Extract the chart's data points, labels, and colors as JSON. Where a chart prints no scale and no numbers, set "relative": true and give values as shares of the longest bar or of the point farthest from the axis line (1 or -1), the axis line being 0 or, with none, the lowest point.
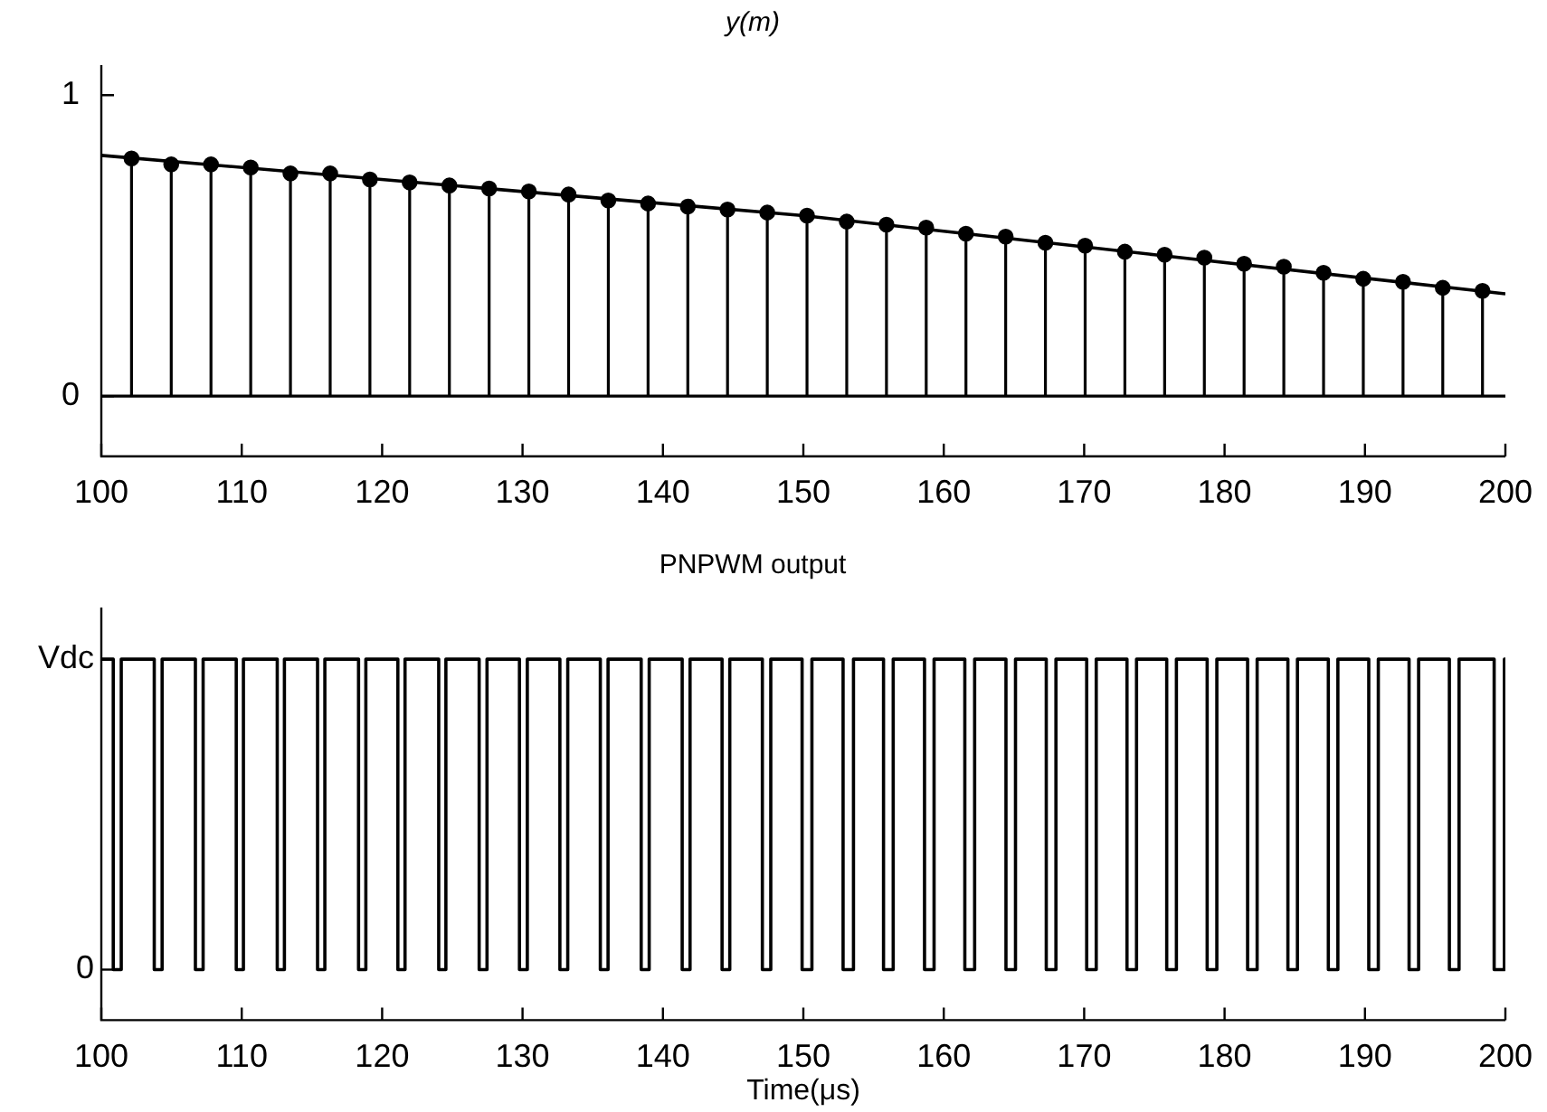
{
  "chart_data": [
    {
      "type": "lollipop",
      "title": "y(m)",
      "xlim": [
        100,
        200
      ],
      "xticks": [
        100,
        110,
        120,
        130,
        140,
        150,
        160,
        170,
        180,
        190,
        200
      ],
      "ylim": [
        -0.2,
        1.1
      ],
      "yticks": [
        0,
        1
      ],
      "marker": "circle",
      "legend": false,
      "series": [
        {
          "type": "lollipop",
          "color": "#000000",
          "x": [
            102.15,
            104.98,
            107.81,
            110.64,
            113.47,
            116.3,
            119.13,
            121.96,
            124.79,
            127.62,
            130.45,
            133.28,
            136.11,
            138.94,
            141.77,
            144.6,
            147.43,
            150.26,
            153.09,
            155.92,
            158.75,
            161.58,
            164.41,
            167.24,
            170.07,
            172.9,
            175.73,
            178.56,
            181.39,
            184.22,
            187.05,
            189.88,
            192.71,
            195.54,
            198.37
          ],
          "values": [
            0.79,
            0.77,
            0.77,
            0.76,
            0.74,
            0.74,
            0.72,
            0.71,
            0.7,
            0.69,
            0.68,
            0.67,
            0.65,
            0.64,
            0.63,
            0.62,
            0.61,
            0.6,
            0.58,
            0.57,
            0.56,
            0.54,
            0.53,
            0.51,
            0.5,
            0.48,
            0.47,
            0.46,
            0.44,
            0.43,
            0.41,
            0.39,
            0.38,
            0.36,
            0.35
          ]
        },
        {
          "type": "line",
          "color": "#000000",
          "marker": "none",
          "x": [
            100,
            125,
            150,
            175,
            200
          ],
          "values": [
            0.8,
            0.7,
            0.6,
            0.47,
            0.34
          ]
        }
      ]
    },
    {
      "type": "step",
      "title": "PNPWM output",
      "xlabel": "Time(μs)",
      "xlim": [
        100,
        200
      ],
      "xticks": [
        100,
        110,
        120,
        130,
        140,
        150,
        160,
        170,
        180,
        190,
        200
      ],
      "relative": true,
      "annotations": [
        "Vdc",
        "0"
      ],
      "legend": false,
      "series": [
        {
          "color": "#000000",
          "x": [
            100,
            100.85,
            101.42,
            103.77,
            104.33,
            106.7,
            107.25,
            109.61,
            110.12,
            112.53,
            113.04,
            115.4,
            115.92,
            118.32,
            118.84,
            121.12,
            121.63,
            124.03,
            124.54,
            126.91,
            127.47,
            129.78,
            130.34,
            132.66,
            133.22,
            135.54,
            136.09,
            138.45,
            139.02,
            141.37,
            141.93,
            144.21,
            144.76,
            147.08,
            147.68,
            149.91,
            150.61,
            152.83,
            153.57,
            155.71,
            156.4,
            158.63,
            159.31,
            161.5,
            162.2,
            164.43,
            165.11,
            167.3,
            167.99,
            170.18,
            170.86,
            173.05,
            173.73,
            175.88,
            176.57,
            178.76,
            179.45,
            181.64,
            182.32,
            184.51,
            185.19,
            187.39,
            188.07,
            190.27,
            190.95,
            193.14,
            193.82,
            196.01,
            196.7,
            199.2,
            199.93,
            200
          ],
          "values": [
            1,
            0.14,
            1,
            0.14,
            1,
            0.14,
            1,
            0.14,
            1,
            0.14,
            1,
            0.14,
            1,
            0.14,
            1,
            0.14,
            1,
            0.14,
            1,
            0.14,
            1,
            0.14,
            1,
            0.14,
            1,
            0.14,
            1,
            0.14,
            1,
            0.14,
            1,
            0.14,
            1,
            0.14,
            1,
            0.14,
            1,
            0.14,
            1,
            0.14,
            1,
            0.14,
            1,
            0.14,
            1,
            0.14,
            1,
            0.14,
            1,
            0.14,
            1,
            0.14,
            1,
            0.14,
            1,
            0.14,
            1,
            0.14,
            1,
            0.14,
            1,
            0.14,
            1,
            0.14,
            1,
            0.14,
            1,
            0.14,
            1,
            0.14,
            1,
            1
          ]
        }
      ]
    }
  ]
}
